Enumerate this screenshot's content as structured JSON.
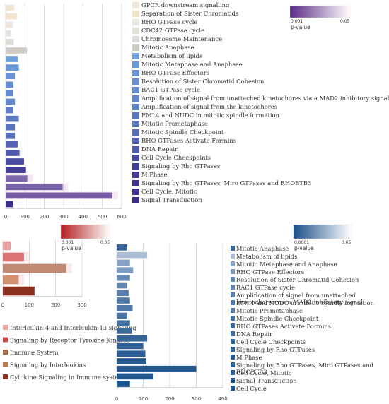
{
  "chart_data": [
    {
      "type": "bar",
      "orientation": "horizontal",
      "xlim": [
        0,
        600
      ],
      "xticks": [
        "0",
        "100",
        "200",
        "300",
        "400",
        "500",
        "600"
      ],
      "categories": [
        "GPCR downstream signalling",
        "Separation of Sister Chromatids",
        "RHO GTPase cycle",
        "CDC42 GTPase cycle",
        "Chromosome Maintenance",
        "Mitotic Anaphase",
        "Metabolism of lipids",
        "Mitotic Metaphase and Anaphase",
        "RHO GTPase Effectors",
        "Resolution of Sister Chromatid Cohesion",
        "RAC1 GTPase cycle",
        "Amplification of signal from unattached kinetochores via a MAD2 inhibitory signal",
        "Amplification of signal from the kinetochores",
        "EML4 and NUDC in mitotic spindle formation",
        "Mitotic Prometaphase",
        "Mitotic Spindle Checkpoint",
        "RHO GTPases Activate Formins",
        "DNA Repair",
        "Cell Cycle Checkpoints",
        "Signaling by Rho GTPases",
        "M Phase",
        "Signaling by Rho GTPases, Miro GTPases and RHOBTB3",
        "Cell Cycle, Mitotic",
        "Signal Transduction"
      ],
      "values": [
        45,
        58,
        38,
        28,
        42,
        110,
        62,
        68,
        48,
        40,
        38,
        48,
        40,
        68,
        48,
        48,
        62,
        72,
        95,
        105,
        112,
        295,
        552,
        38
      ],
      "colorbar": {
        "title": "p-value",
        "min_label": "0.001",
        "max_label": "0.05",
        "low_color": "#5b2a86",
        "high_color": "#ffffff"
      }
    },
    {
      "type": "bar",
      "orientation": "horizontal",
      "xlim": [
        0,
        300
      ],
      "xticks": [
        "0",
        "100",
        "200",
        "300"
      ],
      "categories": [
        "Interleukin-4 and Interleukin-13 signaling",
        "Signaling by Receptor Tyrosine Kinases",
        "Immune System",
        "Signaling by Interleukins",
        "Cytokine Signaling in Immune system"
      ],
      "values": [
        30,
        80,
        240,
        60,
        120
      ],
      "colorbar": {
        "title": "p-value",
        "min_label": "0.001",
        "max_label": "0.05",
        "low_color": "#b21f1f",
        "high_color": "#ffffff"
      }
    },
    {
      "type": "bar",
      "orientation": "horizontal",
      "xlim": [
        0,
        400
      ],
      "xticks": [
        "0",
        "100",
        "200",
        "300",
        "400"
      ],
      "categories": [
        "Mitotic Anaphase",
        "Metabolism of lipids",
        "Mitotic Metaphase and Anaphase",
        "RHO GTPase Effectors",
        "Resolution of Sister Chromatid Cohesion",
        "RAC1 GTPase cycle",
        "Amplification of signal from unattached kinetochores via a MAD2 inhibitory signal",
        "EML4 and NUDC in mitotic spindle formation",
        "Mitotic Prometaphase",
        "Mitotic Spindle Checkpoint",
        "RHO GTPases Activate Formins",
        "DNA Repair",
        "Cell Cycle Checkpoints",
        "Signaling by Rho GTPases",
        "M Phase",
        "Signaling by Rho GTPases, Miro GTPases and RHOBTB3",
        "Cell Cycle, Mitotic",
        "Signal Transduction",
        "Cell Cycle"
      ],
      "values": [
        40,
        115,
        50,
        62,
        50,
        38,
        45,
        50,
        60,
        40,
        50,
        58,
        115,
        100,
        108,
        112,
        300,
        138,
        50
      ],
      "colorbar": {
        "title": "p-value",
        "min_label": "0.0001",
        "max_label": "0.05",
        "low_color": "#1a4f8a",
        "high_color": "#ffffff"
      }
    }
  ]
}
